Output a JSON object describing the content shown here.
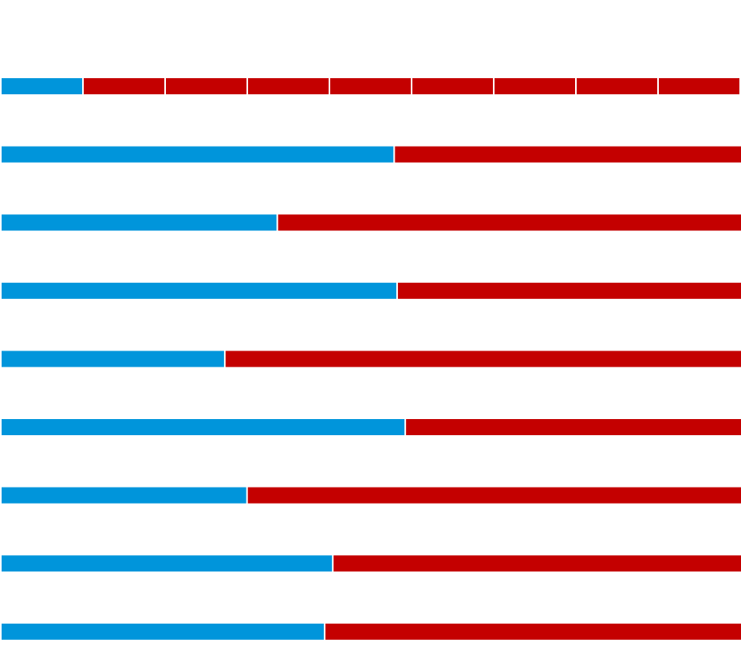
{
  "chart_data": [
    {
      "type": "unit",
      "series": [
        {
          "color": "#0095db",
          "values": [
            1
          ]
        },
        {
          "color": "#c40000",
          "values": [
            8
          ]
        }
      ]
    },
    {
      "type": "bar",
      "orientation": "horizontal",
      "stacked": true,
      "categories": [
        null,
        null,
        null,
        null,
        null,
        null,
        null,
        null
      ],
      "series": [
        {
          "color": "#0095db",
          "values": [
            53.2,
            37.4,
            53.6,
            30.3,
            54.7,
            33.3,
            44.9,
            43.8
          ]
        },
        {
          "color": "#c40000",
          "values": [
            46.8,
            62.6,
            46.4,
            69.7,
            45.3,
            66.7,
            55.1,
            56.2
          ]
        }
      ],
      "xlim": [
        0,
        100
      ]
    }
  ]
}
